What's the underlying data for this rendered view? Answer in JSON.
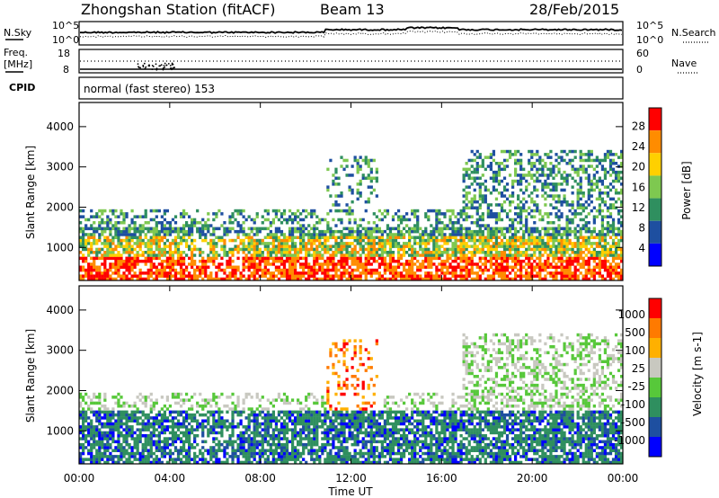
{
  "header": {
    "station": "Zhongshan Station (fitACF)",
    "beam": "Beam 13",
    "date": "28/Feb/2015"
  },
  "top_panel": {
    "left_label": "N.Sky",
    "right_label": "N.Search",
    "left_ticks": [
      "10^5",
      "10^0"
    ],
    "right_ticks": [
      "10^5",
      "10^0"
    ]
  },
  "freq_panel": {
    "left_label_top": "Freq.",
    "left_label_bottom": "[MHz]",
    "left_ticks": [
      "18",
      "8"
    ],
    "right_label": "Nave",
    "right_ticks": [
      "60",
      "0"
    ]
  },
  "cpid": {
    "label": "CPID",
    "value": "normal (fast stereo) 153"
  },
  "power_panel": {
    "ylabel": "Slant Range [km]",
    "yticks": [
      "4000",
      "3000",
      "2000",
      "1000"
    ],
    "colorbar_label": "Power [dB]",
    "colorbar_ticks": [
      "28",
      "24",
      "20",
      "16",
      "12",
      "8",
      "4"
    ],
    "colors": [
      "#0000ff",
      "#1e4fa0",
      "#2f8f5f",
      "#7ec850",
      "#ffd000",
      "#ff8c00",
      "#ff0000"
    ]
  },
  "velocity_panel": {
    "ylabel": "Slant Range [km]",
    "yticks": [
      "4000",
      "3000",
      "2000",
      "1000"
    ],
    "colorbar_label": "Velocity [m s-1]",
    "colorbar_ticks": [
      "1000",
      "500",
      "100",
      "25",
      "-25",
      "-100",
      "-500",
      "-1000"
    ],
    "colors": [
      "#0000ff",
      "#1e4fa0",
      "#2f8f5f",
      "#57c83a",
      "#c8c8c0",
      "#ffb000",
      "#ff7a00",
      "#ff0000"
    ]
  },
  "xaxis": {
    "label": "Time UT",
    "ticks": [
      "00:00",
      "04:00",
      "08:00",
      "12:00",
      "16:00",
      "20:00",
      "00:00"
    ]
  },
  "chart_data": [
    {
      "type": "heatmap",
      "quantity": "Power",
      "xlabel": "Time UT",
      "ylabel": "Slant Range [km]",
      "ylim": [
        180,
        4600
      ],
      "x": [
        "00:00",
        "04:00",
        "08:00",
        "12:00",
        "16:00",
        "20:00",
        "00:00"
      ],
      "color_scale": [
        4,
        8,
        12,
        16,
        20,
        24,
        28
      ],
      "colorbar_label": "Power [dB]"
    },
    {
      "type": "heatmap",
      "quantity": "Velocity",
      "xlabel": "Time UT",
      "ylabel": "Slant Range [km]",
      "ylim": [
        180,
        4600
      ],
      "x": [
        "00:00",
        "04:00",
        "08:00",
        "12:00",
        "16:00",
        "20:00",
        "00:00"
      ],
      "color_scale": [
        1000,
        500,
        100,
        25,
        -25,
        -100,
        -500,
        -1000
      ],
      "colorbar_label": "Velocity [m s-1]"
    }
  ]
}
